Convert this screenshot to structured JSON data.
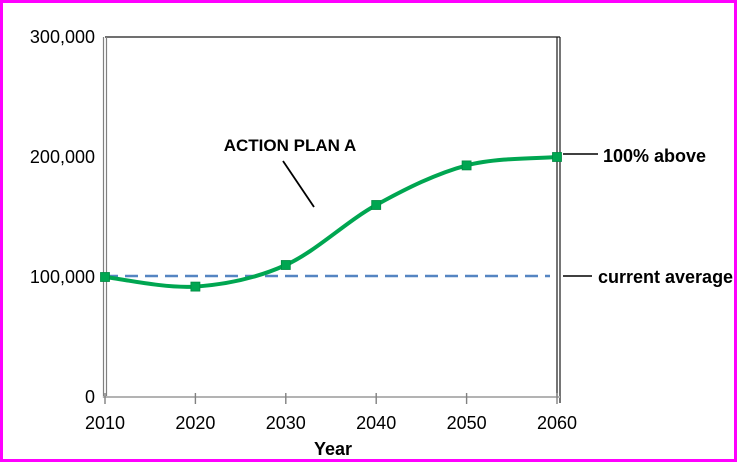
{
  "chart_data": {
    "type": "line",
    "title": "",
    "xlabel": "Year",
    "ylabel": "",
    "x": [
      2010,
      2020,
      2030,
      2040,
      2050,
      2060
    ],
    "x_tick_labels": [
      "2010",
      "2020",
      "2030",
      "2040",
      "2050",
      "2060"
    ],
    "series": [
      {
        "name": "ACTION PLAN A",
        "values": [
          100000,
          92000,
          110000,
          160000,
          193000,
          200000
        ],
        "color": "#00A651",
        "marker": "square",
        "smooth": true
      }
    ],
    "reference_line": {
      "label": "current average",
      "value": 100000,
      "style": "dashed",
      "color": "#5585C2"
    },
    "xlim": [
      2010,
      2060
    ],
    "ylim": [
      0,
      300000
    ],
    "yticks": [
      0,
      100000,
      200000,
      300000
    ],
    "y_tick_labels": [
      "0",
      "100,000",
      "200,000",
      "300,000"
    ],
    "grid": false,
    "legend": false,
    "annotations": [
      {
        "text": "ACTION PLAN A",
        "target": "series-line"
      },
      {
        "text": "100% above",
        "target": "series-endpoint"
      },
      {
        "text": "current average",
        "target": "reference-line"
      }
    ]
  },
  "colors": {
    "frame_border": "#FF00FF",
    "series_green": "#00A651",
    "reference_blue": "#5585C2",
    "axis_gray": "#808080",
    "plot_border": "#1a1a1a",
    "text": "#000000"
  }
}
